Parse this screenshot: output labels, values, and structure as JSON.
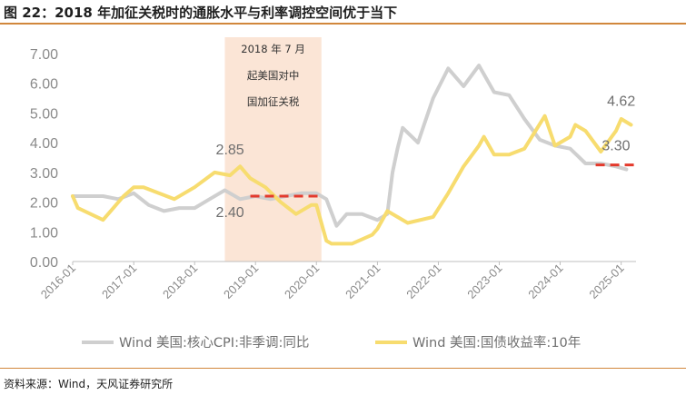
{
  "header": {
    "title": "图 22：2018 年加征关税时的通胀水平与利率调控空间优于当下"
  },
  "footer": {
    "source": "资料来源：Wind，天风证券研究所"
  },
  "colors": {
    "accent_rule": "#d1873c",
    "cpi": "#cfcfcf",
    "yield": "#f7dc6f",
    "shade": "#fbe5d6",
    "level_line": "#e43a2c"
  },
  "chart_data": {
    "type": "line",
    "title": "",
    "xlabel": "",
    "ylabel": "",
    "ylim": [
      0,
      7
    ],
    "y_ticks": [
      "0.00",
      "1.00",
      "2.00",
      "3.00",
      "4.00",
      "5.00",
      "6.00",
      "7.00"
    ],
    "x_ticks": [
      "2016-01",
      "2017-01",
      "2018-01",
      "2019-01",
      "2020-01",
      "2021-01",
      "2022-01",
      "2023-01",
      "2024-01",
      "2025-01"
    ],
    "x_range": [
      "2016-01-01",
      "2025-03-31"
    ],
    "grid": false,
    "legend_position": "bottom",
    "shaded_period": {
      "start": "2018-07-01",
      "end": "2020-01-31",
      "text": [
        "2018 年 7 月",
        "起美国对中",
        "国加征关税"
      ]
    },
    "annotations": [
      {
        "text": "2.85",
        "series": "Wind 美国:国债收益率:10年"
      },
      {
        "text": "2.40",
        "series": "Wind 美国:核心CPI:非季调:同比"
      },
      {
        "text": "4.62",
        "series": "Wind 美国:国债收益率:10年"
      },
      {
        "text": "3.30",
        "series": "Wind 美国:核心CPI:非季调:同比"
      }
    ],
    "reference_lines": [
      {
        "y": 2.2,
        "x_from": "2018-12-01",
        "x_to": "2020-01-15"
      },
      {
        "y": 3.25,
        "x_from": "2024-08-01",
        "x_to": "2025-03-31"
      }
    ],
    "series": [
      {
        "name": "Wind 美国:核心CPI:非季调:同比",
        "color": "#cfcfcf",
        "x": [
          "2016-01",
          "2016-04",
          "2016-07",
          "2016-10",
          "2017-01",
          "2017-04",
          "2017-07",
          "2017-10",
          "2018-01",
          "2018-04",
          "2018-07",
          "2018-10",
          "2019-01",
          "2019-04",
          "2019-07",
          "2019-10",
          "2020-01",
          "2020-03",
          "2020-05",
          "2020-07",
          "2020-10",
          "2021-01",
          "2021-03",
          "2021-04",
          "2021-05",
          "2021-06",
          "2021-09",
          "2021-12",
          "2022-03",
          "2022-06",
          "2022-09",
          "2022-12",
          "2023-03",
          "2023-06",
          "2023-09",
          "2023-12",
          "2024-03",
          "2024-06",
          "2024-09",
          "2024-12",
          "2025-02"
        ],
        "y": [
          2.2,
          2.2,
          2.2,
          2.1,
          2.3,
          1.9,
          1.7,
          1.8,
          1.8,
          2.1,
          2.4,
          2.1,
          2.2,
          2.1,
          2.2,
          2.3,
          2.3,
          2.1,
          1.2,
          1.6,
          1.6,
          1.4,
          1.6,
          3.0,
          3.8,
          4.5,
          4.0,
          5.5,
          6.5,
          5.9,
          6.6,
          5.7,
          5.6,
          4.8,
          4.1,
          3.9,
          3.8,
          3.3,
          3.3,
          3.2,
          3.1
        ]
      },
      {
        "name": "Wind 美国:国债收益率:10年",
        "color": "#f7dc6f",
        "x": [
          "2016-01",
          "2016-02",
          "2016-07",
          "2016-11",
          "2017-01",
          "2017-03",
          "2017-09",
          "2018-01",
          "2018-05",
          "2018-08",
          "2018-10",
          "2018-12",
          "2019-03",
          "2019-06",
          "2019-09",
          "2019-12",
          "2020-01",
          "2020-03",
          "2020-04",
          "2020-08",
          "2020-12",
          "2021-01",
          "2021-03",
          "2021-07",
          "2021-12",
          "2022-03",
          "2022-06",
          "2022-09",
          "2022-10",
          "2022-12",
          "2023-03",
          "2023-06",
          "2023-10",
          "2023-12",
          "2024-03",
          "2024-04",
          "2024-06",
          "2024-09",
          "2024-12",
          "2025-01",
          "2025-03"
        ],
        "y": [
          2.2,
          1.8,
          1.4,
          2.2,
          2.5,
          2.5,
          2.1,
          2.5,
          3.0,
          2.9,
          3.2,
          2.8,
          2.5,
          2.0,
          1.6,
          1.9,
          1.9,
          0.7,
          0.6,
          0.6,
          0.9,
          1.1,
          1.7,
          1.3,
          1.5,
          2.3,
          3.2,
          3.9,
          4.2,
          3.6,
          3.6,
          3.8,
          4.9,
          3.9,
          4.2,
          4.6,
          4.4,
          3.7,
          4.4,
          4.8,
          4.6
        ]
      }
    ]
  }
}
